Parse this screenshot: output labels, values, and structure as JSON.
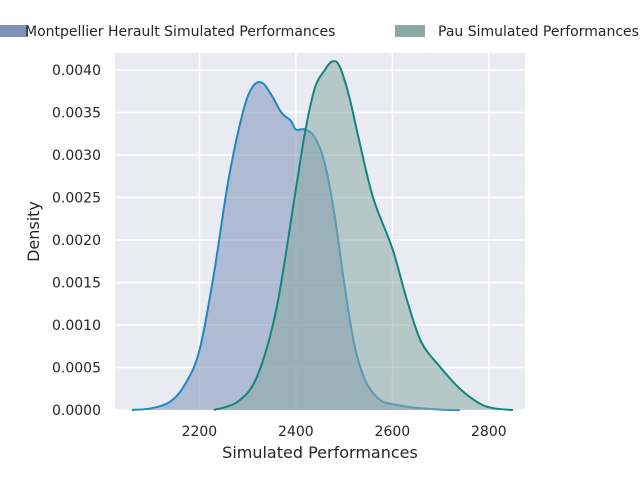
{
  "chart_data": {
    "type": "area",
    "xlabel": "Simulated Performances",
    "ylabel": "Density",
    "xlim": [
      2025,
      2875
    ],
    "ylim": [
      0,
      0.0042
    ],
    "x_ticks": [
      2200,
      2400,
      2600,
      2800
    ],
    "x_tick_labels": [
      "2200",
      "2400",
      "2600",
      "2800"
    ],
    "y_ticks": [
      0,
      0.0005,
      0.001,
      0.0015,
      0.002,
      0.0025,
      0.003,
      0.0035,
      0.004
    ],
    "y_tick_labels": [
      "0.0000",
      "0.0005",
      "0.0010",
      "0.0015",
      "0.0020",
      "0.0025",
      "0.0030",
      "0.0035",
      "0.0040"
    ],
    "grid": true,
    "legend_position": "top",
    "series": [
      {
        "name": "Montpellier Herault Simulated Performances",
        "line_color": "#1f88c2",
        "fill_color": "#7e93b8",
        "x": [
          2060,
          2100,
          2140,
          2170,
          2200,
          2230,
          2260,
          2290,
          2310,
          2330,
          2350,
          2370,
          2390,
          2400,
          2420,
          2440,
          2460,
          2480,
          2500,
          2520,
          2540,
          2560,
          2580,
          2600,
          2630,
          2660,
          2700,
          2740
        ],
        "y": [
          0,
          2e-05,
          0.0001,
          0.0003,
          0.0007,
          0.0016,
          0.0027,
          0.0035,
          0.0038,
          0.00385,
          0.0037,
          0.0035,
          0.0034,
          0.0033,
          0.0033,
          0.0032,
          0.0029,
          0.0023,
          0.0015,
          0.0008,
          0.0004,
          0.0002,
          0.0001,
          7e-05,
          4e-05,
          2e-05,
          5e-06,
          0
        ]
      },
      {
        "name": "Pau Simulated Performances",
        "line_color": "#12857c",
        "fill_color": "#8aa9a6",
        "x": [
          2230,
          2280,
          2320,
          2360,
          2400,
          2420,
          2440,
          2460,
          2475,
          2490,
          2510,
          2530,
          2560,
          2600,
          2630,
          2660,
          2700,
          2740,
          2780,
          2810,
          2850
        ],
        "y": [
          0,
          0.0001,
          0.0004,
          0.0012,
          0.0026,
          0.0033,
          0.0038,
          0.004,
          0.0041,
          0.00405,
          0.0037,
          0.0032,
          0.0025,
          0.0019,
          0.0013,
          0.0008,
          0.0005,
          0.00025,
          8e-05,
          2e-05,
          0
        ]
      }
    ]
  }
}
